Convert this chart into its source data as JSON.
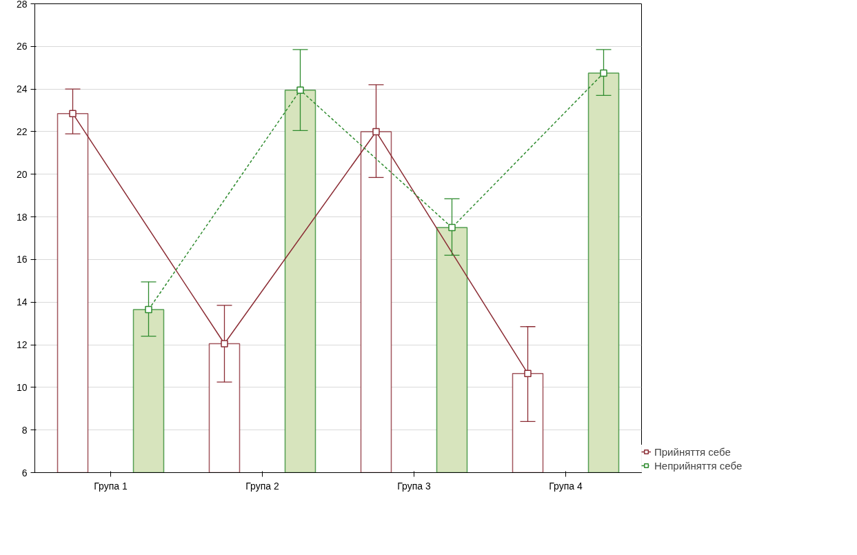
{
  "chart_data": {
    "type": "bar",
    "categories": [
      "Група 1",
      "Група 2",
      "Група 3",
      "Група 4"
    ],
    "series": [
      {
        "color": "#ffffff",
        "values": [
          22.85,
          12.05,
          22.0,
          10.65
        ]
      },
      {
        "color": "#d7e4bd",
        "values": [
          13.65,
          23.95,
          17.5,
          24.75
        ]
      },
      {
        "type": "line",
        "name": "Прийняття себе",
        "color": "#8b2c34",
        "line_style": "solid",
        "values": [
          22.85,
          12.05,
          22.0,
          10.65
        ],
        "errors": [
          [
            21.9,
            24.0
          ],
          [
            10.25,
            13.85
          ],
          [
            19.85,
            24.2
          ],
          [
            8.4,
            12.85
          ]
        ]
      },
      {
        "type": "line",
        "name": "Неприйняття себе",
        "color": "#2e8b2e",
        "line_style": "dashed",
        "values": [
          13.65,
          23.95,
          17.5,
          24.75
        ],
        "errors": [
          [
            12.4,
            14.95
          ],
          [
            22.05,
            25.85
          ],
          [
            16.2,
            18.85
          ],
          [
            23.7,
            25.85
          ]
        ]
      }
    ],
    "marker": "square",
    "ylim": [
      6,
      28
    ],
    "yticks": [
      6,
      8,
      10,
      12,
      14,
      16,
      18,
      20,
      22,
      24,
      26,
      28
    ],
    "grid": "y",
    "legend": "bottom right"
  }
}
